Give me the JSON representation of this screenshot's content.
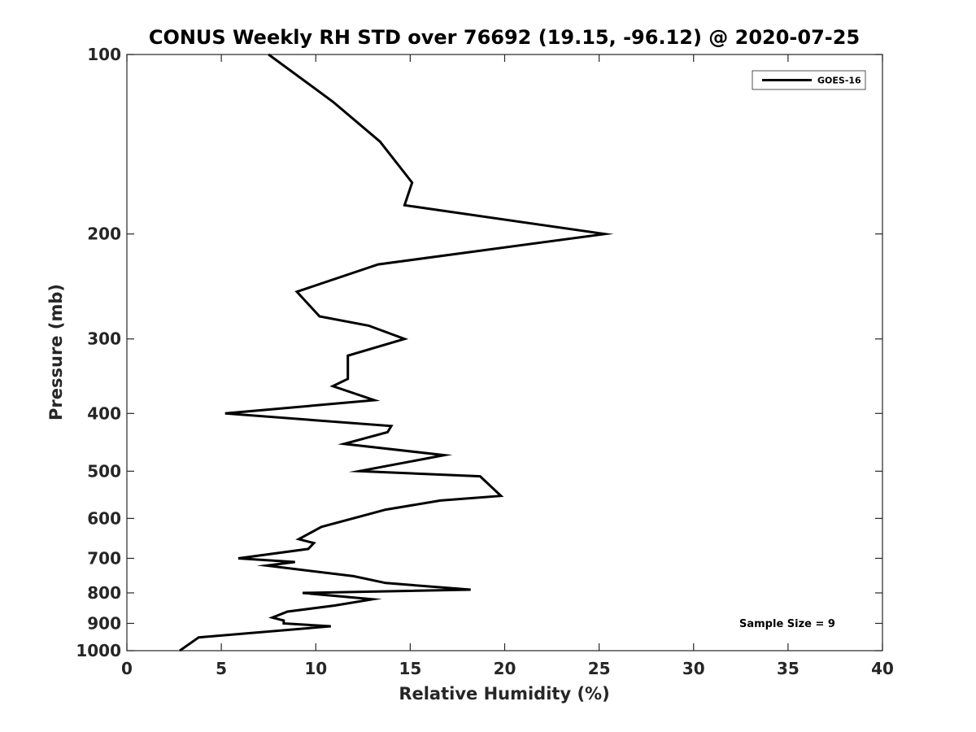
{
  "chart_data": {
    "type": "line",
    "title": "CONUS Weekly RH STD over 76692 (19.15, -96.12) @ 2020-07-25",
    "xlabel": "Relative Humidity (%)",
    "ylabel": "Pressure (mb)",
    "xlim": [
      0,
      40
    ],
    "ylim": [
      1000,
      100
    ],
    "yscale": "log",
    "xticks": [
      "0",
      "5",
      "10",
      "15",
      "20",
      "25",
      "30",
      "35",
      "40"
    ],
    "yticks": [
      "100",
      "200",
      "300",
      "400",
      "500",
      "600",
      "700",
      "800",
      "900",
      "1000"
    ],
    "grid": false,
    "legend_position": "top-right",
    "annotation": "Sample Size = 9",
    "colors": {
      "line": "#000000",
      "axes": "#262626"
    },
    "series": [
      {
        "name": "GOES-16",
        "x": [
          7.5,
          10.9,
          13.4,
          15.1,
          14.7,
          25.3,
          13.3,
          9.0,
          10.2,
          12.8,
          14.7,
          11.7,
          11.7,
          10.9,
          13.1,
          5.2,
          14.0,
          13.8,
          11.5,
          16.8,
          12.3,
          18.7,
          19.8,
          16.6,
          13.7,
          10.3,
          9.1,
          9.9,
          9.6,
          5.9,
          8.9,
          7.4,
          12.0,
          13.7,
          18.2,
          9.3,
          13.0,
          11.0,
          8.5,
          7.7,
          8.3,
          8.3,
          10.8,
          3.8,
          2.8
        ],
        "y": [
          100,
          120,
          140,
          164,
          179,
          200,
          225,
          250,
          275,
          285,
          300,
          320,
          350,
          360,
          380,
          400,
          420,
          430,
          450,
          470,
          500,
          510,
          550,
          560,
          580,
          620,
          650,
          660,
          675,
          700,
          710,
          720,
          750,
          770,
          790,
          800,
          820,
          840,
          860,
          880,
          890,
          900,
          910,
          950,
          1000
        ]
      }
    ]
  }
}
